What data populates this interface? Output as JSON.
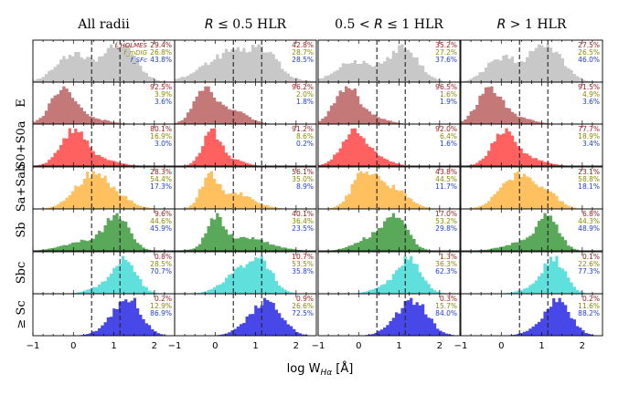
{
  "chart_data": {
    "type": "histogram-grid",
    "xlabel": "log W",
    "xlabel_sub": "Hα",
    "xlabel_unit": " [Å]",
    "xlim": [
      -1,
      2.5
    ],
    "x_ticks": [
      "−1",
      "0",
      "1",
      "2"
    ],
    "x_tick_values": [
      -1,
      0,
      1,
      2
    ],
    "vlines": [
      0.45,
      1.15
    ],
    "legend": {
      "items": [
        "f_HOLMES",
        "f_mDIG",
        "f_SFc"
      ],
      "colors": [
        "#a01a1a",
        "#8a8a00",
        "#2040d0"
      ]
    },
    "columns": [
      {
        "title": "All radii"
      },
      {
        "title_italic": "R",
        "title_rest": " ≤ 0.5 HLR"
      },
      {
        "title_pre": "0.5 < ",
        "title_italic": "R",
        "title_rest": " ≤ 1 HLR"
      },
      {
        "title_italic": "R",
        "title_rest": " > 1 HLR"
      }
    ],
    "rows": [
      {
        "label": "",
        "color": "#c8c8c8"
      },
      {
        "label": "E",
        "color": "#c47878"
      },
      {
        "label": "S0+S0a",
        "color": "#ff6060"
      },
      {
        "label": "Sa+Sab",
        "color": "#ffc060"
      },
      {
        "label": "Sb",
        "color": "#5aa85a"
      },
      {
        "label": "Sbc",
        "color": "#60e0dc"
      },
      {
        "label": "≥ Sc",
        "color": "#4848e8"
      }
    ],
    "fractions": [
      [
        [
          "29.4%",
          "26.8%",
          "43.8%"
        ],
        [
          "42.8%",
          "28.7%",
          "28.5%"
        ],
        [
          "35.2%",
          "27.2%",
          "37.6%"
        ],
        [
          "27.5%",
          "26.5%",
          "46.0%"
        ]
      ],
      [
        [
          "92.5%",
          "3.9%",
          "3.6%"
        ],
        [
          "96.2%",
          "2.0%",
          "1.8%"
        ],
        [
          "96.5%",
          "1.6%",
          "1.9%"
        ],
        [
          "91.5%",
          "4.9%",
          "3.6%"
        ]
      ],
      [
        [
          "80.1%",
          "16.9%",
          "3.0%"
        ],
        [
          "91.2%",
          "8.6%",
          "0.2%"
        ],
        [
          "92.0%",
          "6.4%",
          "1.6%"
        ],
        [
          "77.7%",
          "18.9%",
          "3.4%"
        ]
      ],
      [
        [
          "28.3%",
          "54.4%",
          "17.3%"
        ],
        [
          "56.1%",
          "35.0%",
          "8.9%"
        ],
        [
          "43.8%",
          "44.5%",
          "11.7%"
        ],
        [
          "23.1%",
          "58.8%",
          "18.1%"
        ]
      ],
      [
        [
          "9.6%",
          "44.6%",
          "45.9%"
        ],
        [
          "40.1%",
          "36.4%",
          "23.5%"
        ],
        [
          "17.0%",
          "53.2%",
          "29.8%"
        ],
        [
          "6.8%",
          "44.3%",
          "48.9%"
        ]
      ],
      [
        [
          "0.8%",
          "28.5%",
          "70.7%"
        ],
        [
          "10.7%",
          "53.5%",
          "35.8%"
        ],
        [
          "1.3%",
          "36.3%",
          "62.3%"
        ],
        [
          "0.1%",
          "22.6%",
          "77.3%"
        ]
      ],
      [
        [
          "0.2%",
          "12.9%",
          "86.9%"
        ],
        [
          "0.9%",
          "26.6%",
          "72.5%"
        ],
        [
          "0.3%",
          "15.7%",
          "84.0%"
        ],
        [
          "0.2%",
          "11.6%",
          "88.2%"
        ]
      ]
    ],
    "components": [
      [
        [
          {
            "mu": 0.0,
            "s": 0.42,
            "a": 0.68
          },
          {
            "mu": 1.15,
            "s": 0.38,
            "a": 0.95
          }
        ],
        [
          {
            "mu": 0.55,
            "s": 0.7,
            "a": 0.4
          },
          {
            "mu": 1.3,
            "s": 0.25,
            "a": 0.18
          }
        ],
        [
          {
            "mu": -0.1,
            "s": 0.45,
            "a": 0.62
          },
          {
            "mu": 1.1,
            "s": 0.38,
            "a": 1.0
          }
        ],
        [
          {
            "mu": 0.0,
            "s": 0.38,
            "a": 0.62
          },
          {
            "mu": 1.1,
            "s": 0.4,
            "a": 1.0
          }
        ]
      ],
      [
        [
          {
            "mu": -0.25,
            "s": 0.3,
            "a": 1.0
          },
          {
            "mu": 0.45,
            "s": 0.4,
            "a": 0.15
          }
        ],
        [
          {
            "mu": -0.25,
            "s": 0.28,
            "a": 1.0
          },
          {
            "mu": 0.45,
            "s": 0.35,
            "a": 0.4
          }
        ],
        [
          {
            "mu": -0.3,
            "s": 0.3,
            "a": 1.0
          },
          {
            "mu": 0.35,
            "s": 0.35,
            "a": 0.18
          }
        ],
        [
          {
            "mu": -0.3,
            "s": 0.3,
            "a": 1.0
          },
          {
            "mu": 0.35,
            "s": 0.4,
            "a": 0.2
          }
        ]
      ],
      [
        [
          {
            "mu": 0.0,
            "s": 0.32,
            "a": 1.0
          },
          {
            "mu": 0.7,
            "s": 0.4,
            "a": 0.18
          }
        ],
        [
          {
            "mu": -0.1,
            "s": 0.22,
            "a": 1.0
          },
          {
            "mu": 0.4,
            "s": 0.3,
            "a": 0.2
          }
        ],
        [
          {
            "mu": -0.15,
            "s": 0.3,
            "a": 1.0
          },
          {
            "mu": 0.4,
            "s": 0.35,
            "a": 0.25
          }
        ],
        [
          {
            "mu": 0.05,
            "s": 0.3,
            "a": 1.0
          },
          {
            "mu": 0.65,
            "s": 0.4,
            "a": 0.25
          }
        ]
      ],
      [
        [
          {
            "mu": 0.4,
            "s": 0.4,
            "a": 1.0
          },
          {
            "mu": 1.0,
            "s": 0.4,
            "a": 0.4
          }
        ],
        [
          {
            "mu": -0.15,
            "s": 0.2,
            "a": 1.0
          },
          {
            "mu": 0.5,
            "s": 0.45,
            "a": 0.52
          }
        ],
        [
          {
            "mu": 0.15,
            "s": 0.3,
            "a": 1.0
          },
          {
            "mu": 0.9,
            "s": 0.35,
            "a": 0.5
          }
        ],
        [
          {
            "mu": 0.4,
            "s": 0.42,
            "a": 1.0
          },
          {
            "mu": 1.15,
            "s": 0.3,
            "a": 0.35
          }
        ]
      ],
      [
        [
          {
            "mu": 1.1,
            "s": 0.3,
            "a": 1.0
          },
          {
            "mu": 0.3,
            "s": 0.5,
            "a": 0.3
          }
        ],
        [
          {
            "mu": 0.0,
            "s": 0.2,
            "a": 1.0
          },
          {
            "mu": 0.7,
            "s": 0.6,
            "a": 0.5
          }
        ],
        [
          {
            "mu": 0.9,
            "s": 0.3,
            "a": 1.0
          },
          {
            "mu": 0.2,
            "s": 0.35,
            "a": 0.3
          }
        ],
        [
          {
            "mu": 1.15,
            "s": 0.28,
            "a": 1.0
          },
          {
            "mu": 0.5,
            "s": 0.45,
            "a": 0.25
          }
        ]
      ],
      [
        [
          {
            "mu": 1.25,
            "s": 0.3,
            "a": 1.0
          },
          {
            "mu": 0.6,
            "s": 0.3,
            "a": 0.15
          }
        ],
        [
          {
            "mu": 0.75,
            "s": 0.45,
            "a": 0.85
          },
          {
            "mu": 1.2,
            "s": 0.25,
            "a": 0.55
          }
        ],
        [
          {
            "mu": 1.25,
            "s": 0.3,
            "a": 1.0
          },
          {
            "mu": 0.6,
            "s": 0.3,
            "a": 0.15
          }
        ],
        [
          {
            "mu": 1.3,
            "s": 0.28,
            "a": 1.0
          },
          {
            "mu": 0.7,
            "s": 0.3,
            "a": 0.12
          }
        ]
      ],
      [
        [
          {
            "mu": 1.35,
            "s": 0.32,
            "a": 1.0
          },
          {
            "mu": 0.8,
            "s": 0.3,
            "a": 0.12
          }
        ],
        [
          {
            "mu": 1.3,
            "s": 0.35,
            "a": 1.0
          },
          {
            "mu": 0.7,
            "s": 0.3,
            "a": 0.15
          }
        ],
        [
          {
            "mu": 1.35,
            "s": 0.35,
            "a": 1.0
          },
          {
            "mu": 0.8,
            "s": 0.3,
            "a": 0.12
          }
        ],
        [
          {
            "mu": 1.4,
            "s": 0.32,
            "a": 1.0
          },
          {
            "mu": 0.8,
            "s": 0.3,
            "a": 0.1
          }
        ]
      ]
    ]
  }
}
